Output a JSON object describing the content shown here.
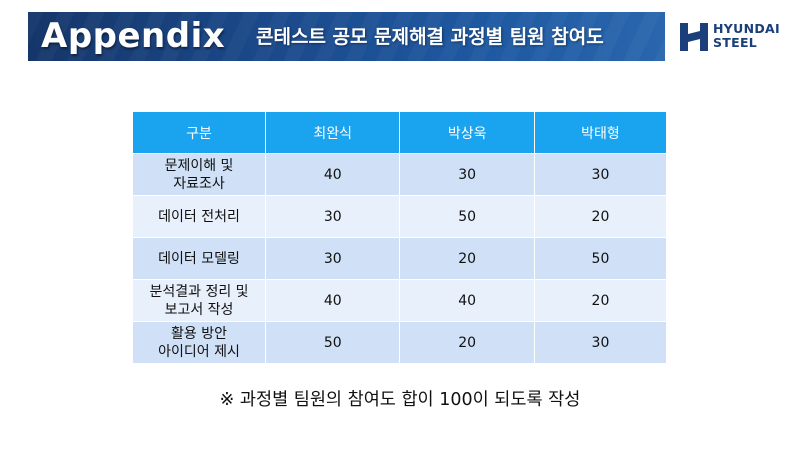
{
  "header": {
    "title": "Appendix",
    "subtitle": "콘테스트 공모 문제해결 과정별 팀원 참여도"
  },
  "logo": {
    "line1": "HYUNDAI",
    "line2": "STEEL",
    "brand_color": "#1b3f7a"
  },
  "table": {
    "columns": [
      "구분",
      "최완식",
      "박상욱",
      "박태형"
    ],
    "rows": [
      {
        "label_line1": "문제이해 및",
        "label_line2": "자료조사",
        "values": [
          "40",
          "30",
          "30"
        ]
      },
      {
        "label_line1": "데이터 전처리",
        "label_line2": "",
        "values": [
          "30",
          "50",
          "20"
        ]
      },
      {
        "label_line1": "데이터 모델링",
        "label_line2": "",
        "values": [
          "30",
          "20",
          "50"
        ]
      },
      {
        "label_line1": "분석결과 정리 및",
        "label_line2": "보고서 작성",
        "values": [
          "40",
          "40",
          "20"
        ]
      },
      {
        "label_line1": "활용 방안",
        "label_line2": "아이디어 제시",
        "values": [
          "50",
          "20",
          "30"
        ]
      }
    ],
    "header_color": "#1aa3ef",
    "row_colors": [
      "#cfe0f7",
      "#e8f0fb"
    ]
  },
  "note": "※ 과정별 팀원의 참여도 합이 100이 되도록 작성"
}
